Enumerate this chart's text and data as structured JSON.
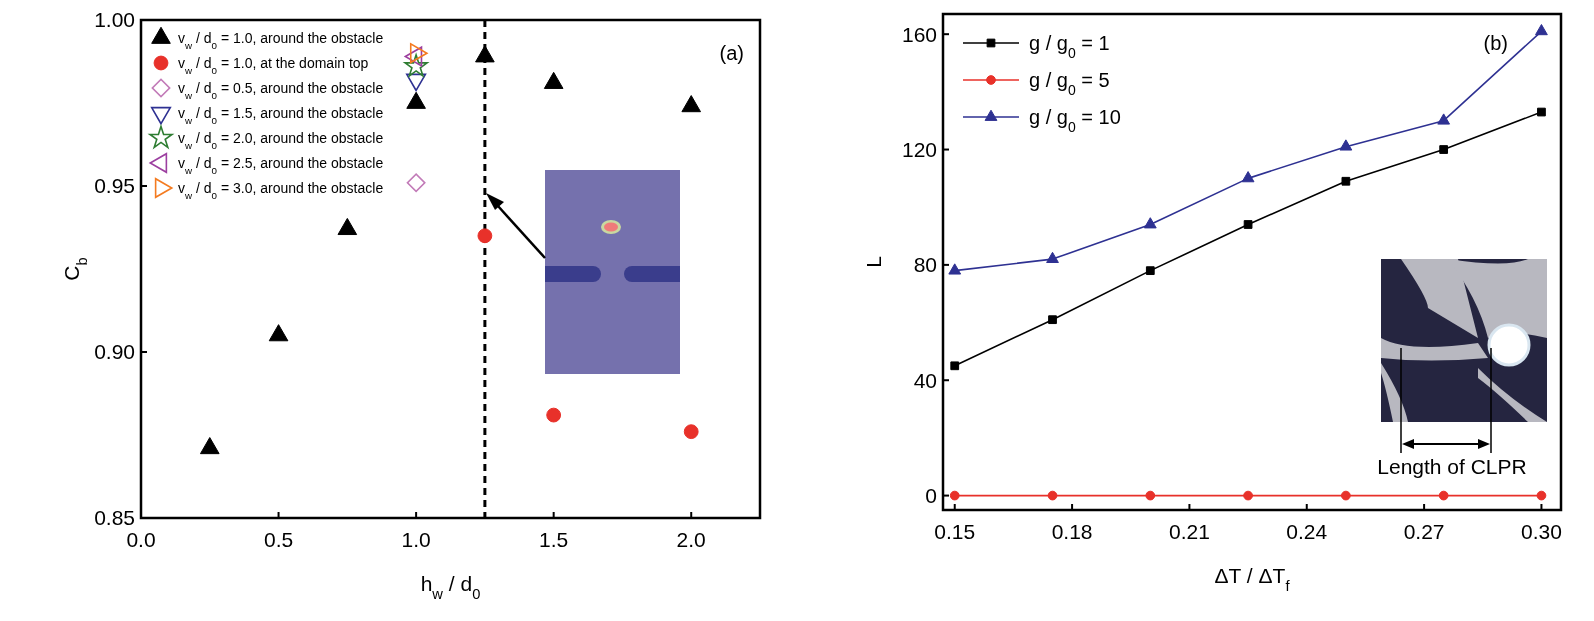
{
  "chart_data": [
    {
      "type": "scatter",
      "xlabel": "h$_{w}$ / d$_{0}$",
      "ylabel": "C$_{b}$",
      "xlim": [
        0,
        2.25
      ],
      "ylim": [
        0.85,
        1.0
      ],
      "xticks": [
        {
          "value": 0,
          "label": "0.0"
        },
        0.5,
        {
          "value": 1,
          "label": "1.0"
        },
        1.5,
        {
          "value": 2,
          "label": "2.0"
        }
      ],
      "yticks": [
        0.85,
        {
          "value": 0.9,
          "label": "0.90"
        },
        0.95,
        {
          "value": 1,
          "label": "1.00"
        }
      ],
      "grid": false,
      "legend": "top left",
      "annotations": [
        "(a)"
      ],
      "ref_lines": [
        {
          "axis": "x",
          "value": 1.25,
          "color": "#000000",
          "line_style": "dashed"
        }
      ],
      "series": [
        {
          "name": "v$_{w}$ / d$_{0}$ = 1.0, around the obstacle",
          "color": "#000000",
          "marker": "triangle",
          "x": [
            0.25,
            0.5,
            0.75,
            1.0,
            1.25,
            1.5,
            2.0
          ],
          "values": [
            0.871,
            0.905,
            0.937,
            0.975,
            0.989,
            0.981,
            0.974
          ]
        },
        {
          "name": "v$_{w}$ / d$_{0}$ = 1.0, at the domain top",
          "color": "#e8312a",
          "marker": "circle",
          "x": [
            1.25,
            1.5,
            2.0
          ],
          "values": [
            0.935,
            0.881,
            0.876
          ]
        },
        {
          "name": "v$_{w}$ / d$_{0}$ = 0.5, around the obstacle",
          "color": "#c27bb8",
          "marker": "diamond",
          "x": [
            1.0
          ],
          "values": [
            0.951
          ]
        },
        {
          "name": "v$_{w}$ / d$_{0}$ = 1.5, around the obstacle",
          "color": "#2e3192",
          "marker": "triangle-down",
          "x": [
            1.0
          ],
          "values": [
            0.982
          ]
        },
        {
          "name": "v$_{w}$ / d$_{0}$ = 2.0, around the obstacle",
          "color": "#2e7d32",
          "marker": "star",
          "x": [
            1.0
          ],
          "values": [
            0.986
          ]
        },
        {
          "name": "v$_{w}$ / d$_{0}$ = 2.5, around the obstacle",
          "color": "#9c3fa0",
          "marker": "triangle-left",
          "x": [
            1.0
          ],
          "values": [
            0.989
          ]
        },
        {
          "name": "v$_{w}$ / d$_{0}$ = 3.0, around the obstacle",
          "color": "#f47b20",
          "marker": "triangle-right",
          "x": [
            1.0
          ],
          "values": [
            0.99
          ]
        }
      ]
    },
    {
      "type": "line",
      "xlabel": "ΔT / ΔT$_{f}$",
      "ylabel": "L",
      "xlim": [
        0.147,
        0.305
      ],
      "ylim": [
        -5,
        167
      ],
      "xticks": [
        0.15,
        0.18,
        0.21,
        0.24,
        0.27,
        {
          "value": 0.3,
          "label": "0.30"
        }
      ],
      "yticks": [
        0,
        40,
        80,
        120,
        160
      ],
      "grid": false,
      "legend": "top left",
      "annotations": [
        "(b)",
        "Length of CLPR"
      ],
      "x": [
        0.15,
        0.175,
        0.2,
        0.225,
        0.25,
        0.275,
        0.3
      ],
      "series": [
        {
          "name": "g / g$_{0}$ = 1",
          "color": "#000000",
          "marker": "square",
          "values": [
            45,
            61,
            78,
            94,
            109,
            120,
            133
          ]
        },
        {
          "name": "g / g$_{0}$ = 5",
          "color": "#e8312a",
          "marker": "circle",
          "values": [
            0,
            0,
            0,
            0,
            0,
            0,
            0
          ]
        },
        {
          "name": "g / g$_{0}$ = 10",
          "color": "#2e3192",
          "marker": "triangle",
          "values": [
            78,
            82,
            94,
            110,
            121,
            130,
            161
          ]
        }
      ]
    }
  ]
}
